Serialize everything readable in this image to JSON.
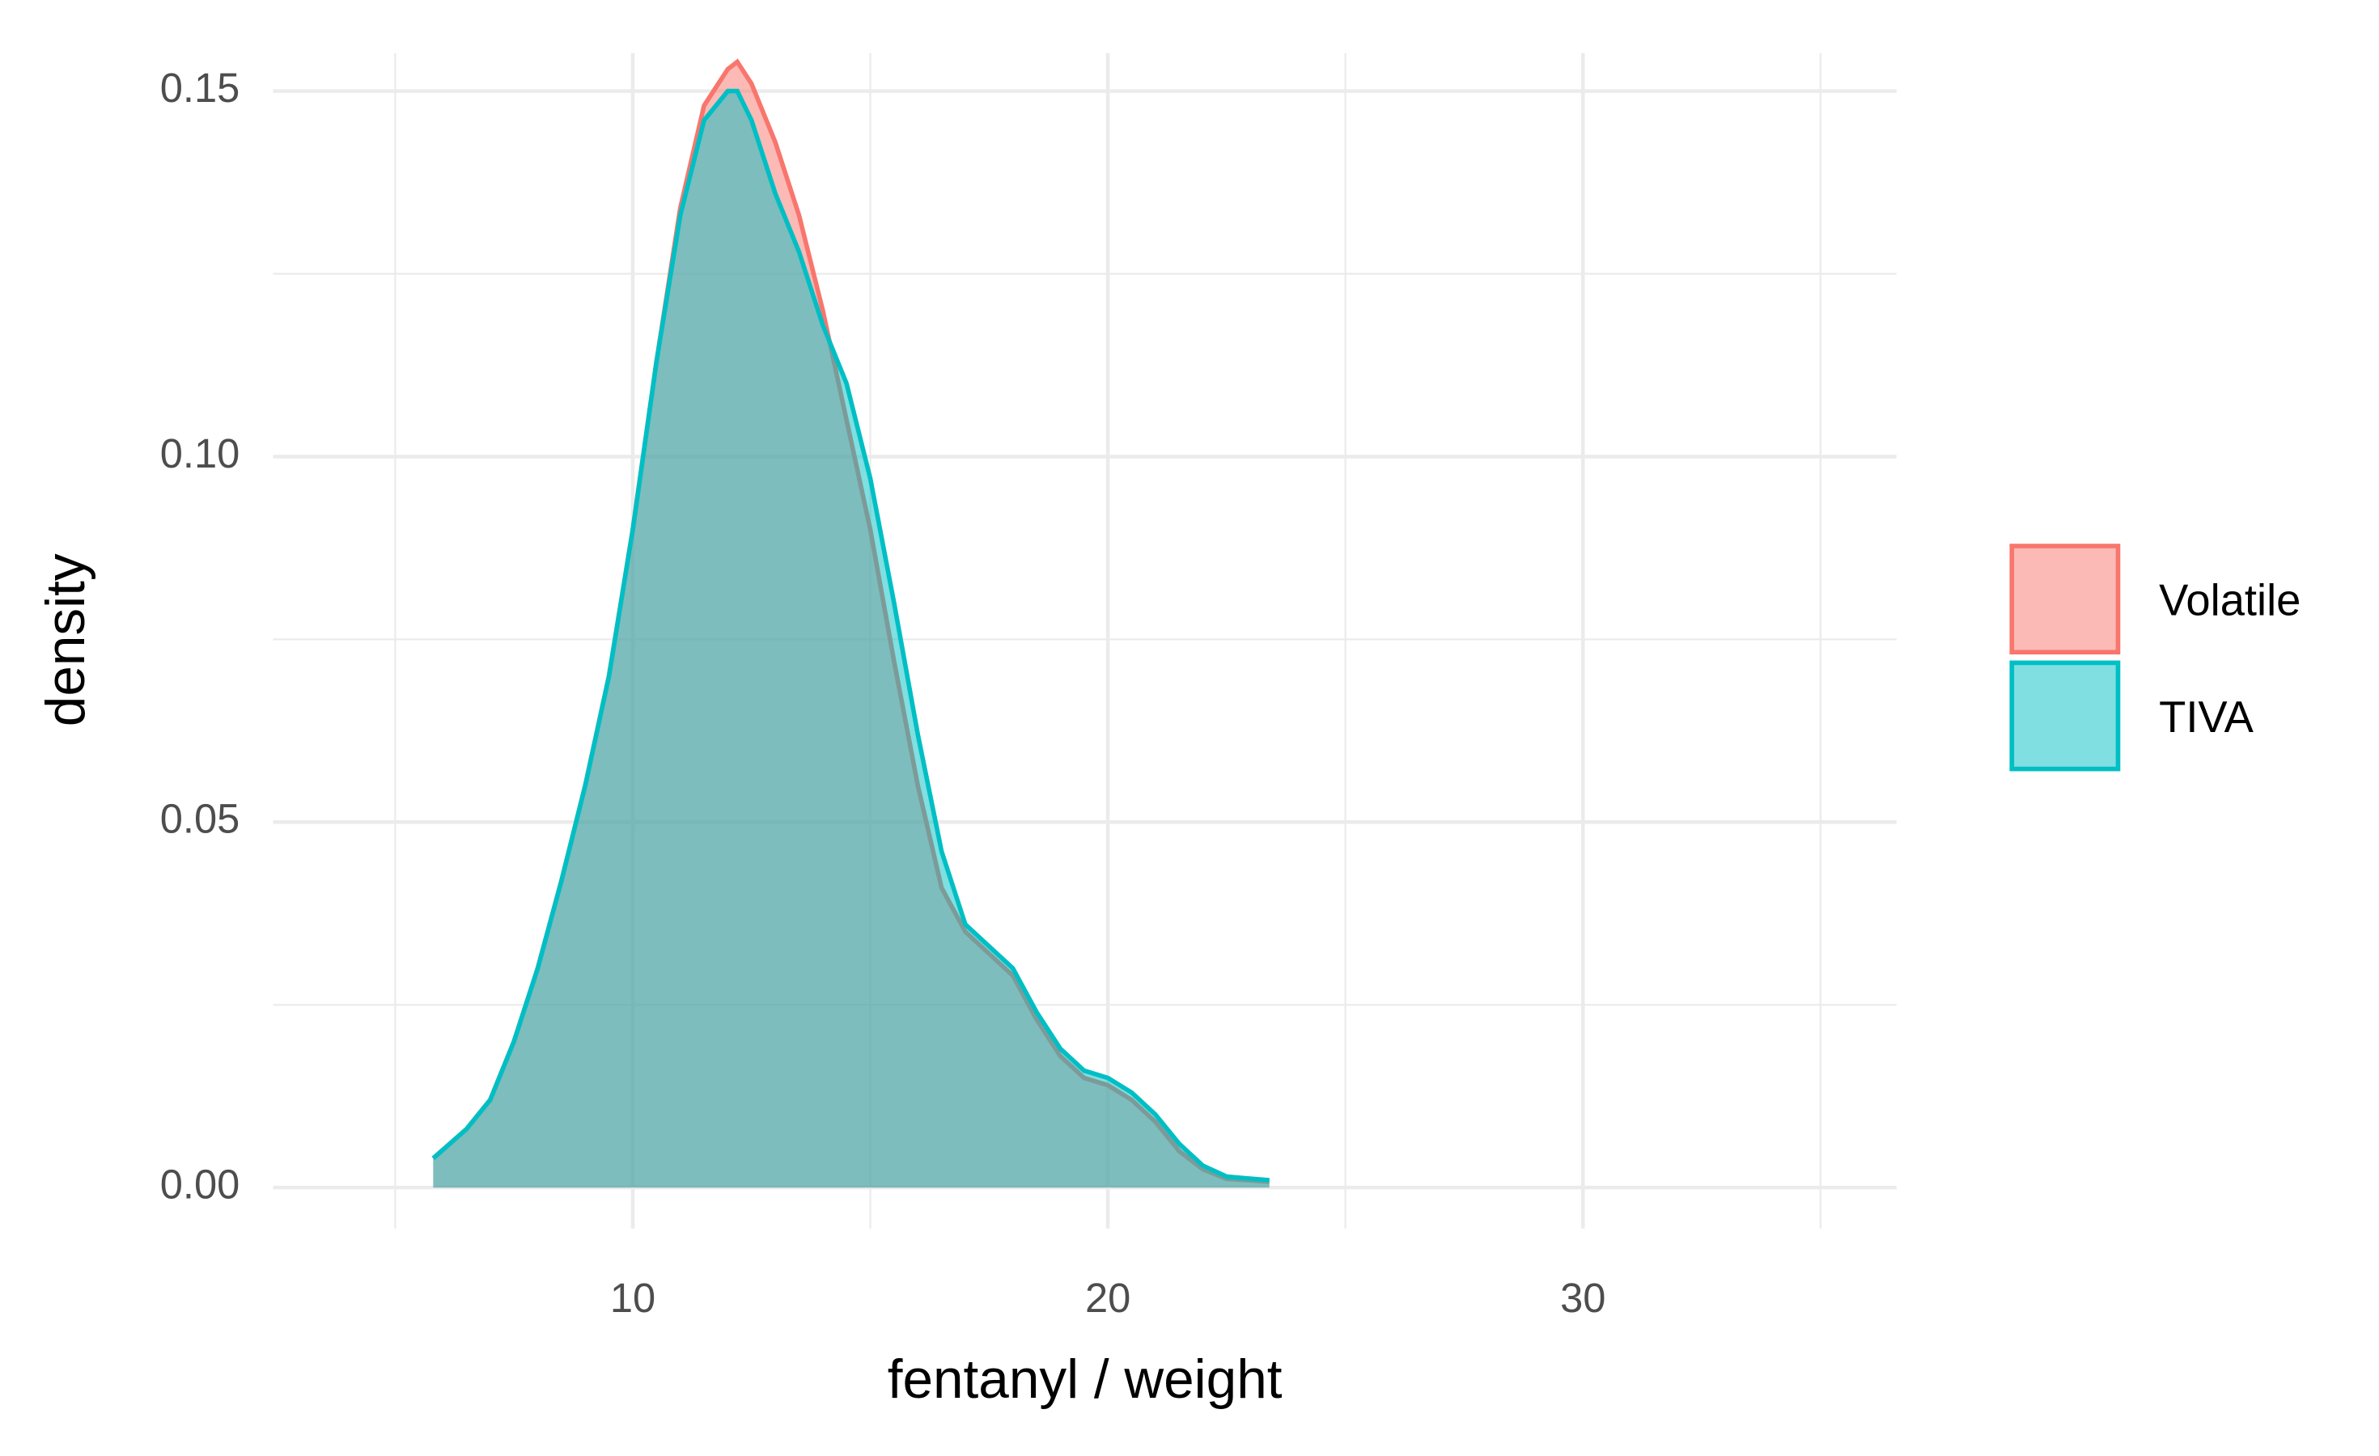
{
  "chart_data": {
    "type": "density",
    "x_label": "fentanyl / weight",
    "y_label": "density",
    "x": [
      5.8,
      6.5,
      7,
      7.5,
      8,
      8.5,
      9,
      9.5,
      10,
      10.5,
      11,
      11.5,
      12,
      12.2,
      12.5,
      13,
      13.5,
      14,
      14.5,
      15,
      15.5,
      16,
      16.5,
      17,
      17.5,
      18,
      18.5,
      19,
      19.5,
      20,
      20.5,
      21,
      21.5,
      22,
      22.5,
      23.4
    ],
    "series": [
      {
        "name": "Volatile",
        "color": "#F8766D",
        "values": [
          0.004,
          0.008,
          0.012,
          0.02,
          0.03,
          0.042,
          0.055,
          0.07,
          0.09,
          0.113,
          0.134,
          0.148,
          0.153,
          0.154,
          0.151,
          0.143,
          0.133,
          0.12,
          0.105,
          0.09,
          0.072,
          0.055,
          0.041,
          0.035,
          0.032,
          0.029,
          0.023,
          0.018,
          0.015,
          0.014,
          0.012,
          0.009,
          0.005,
          0.0025,
          0.0012,
          0.0008
        ]
      },
      {
        "name": "TIVA",
        "color": "#00BFC4",
        "values": [
          0.004,
          0.008,
          0.012,
          0.02,
          0.03,
          0.042,
          0.055,
          0.07,
          0.09,
          0.113,
          0.133,
          0.146,
          0.15,
          0.15,
          0.146,
          0.136,
          0.128,
          0.118,
          0.11,
          0.097,
          0.08,
          0.062,
          0.046,
          0.036,
          0.033,
          0.03,
          0.024,
          0.019,
          0.016,
          0.015,
          0.013,
          0.01,
          0.006,
          0.003,
          0.0015,
          0.001
        ]
      }
    ],
    "xlim": [
      2.43,
      36.6
    ],
    "ylim": [
      -0.0056,
      0.1552
    ],
    "xticks": [
      10,
      20,
      30
    ],
    "yticks": [
      {
        "value": 0,
        "label": "0.00"
      },
      {
        "value": 0.05,
        "label": "0.05"
      },
      {
        "value": 0.1,
        "label": "0.10"
      },
      {
        "value": 0.15,
        "label": "0.15"
      }
    ],
    "xminor": [
      5,
      15,
      25,
      35
    ],
    "yminor": [
      0.025,
      0.075,
      0.125
    ],
    "grid": true,
    "fill_opacity": 0.5,
    "legend": "right"
  }
}
